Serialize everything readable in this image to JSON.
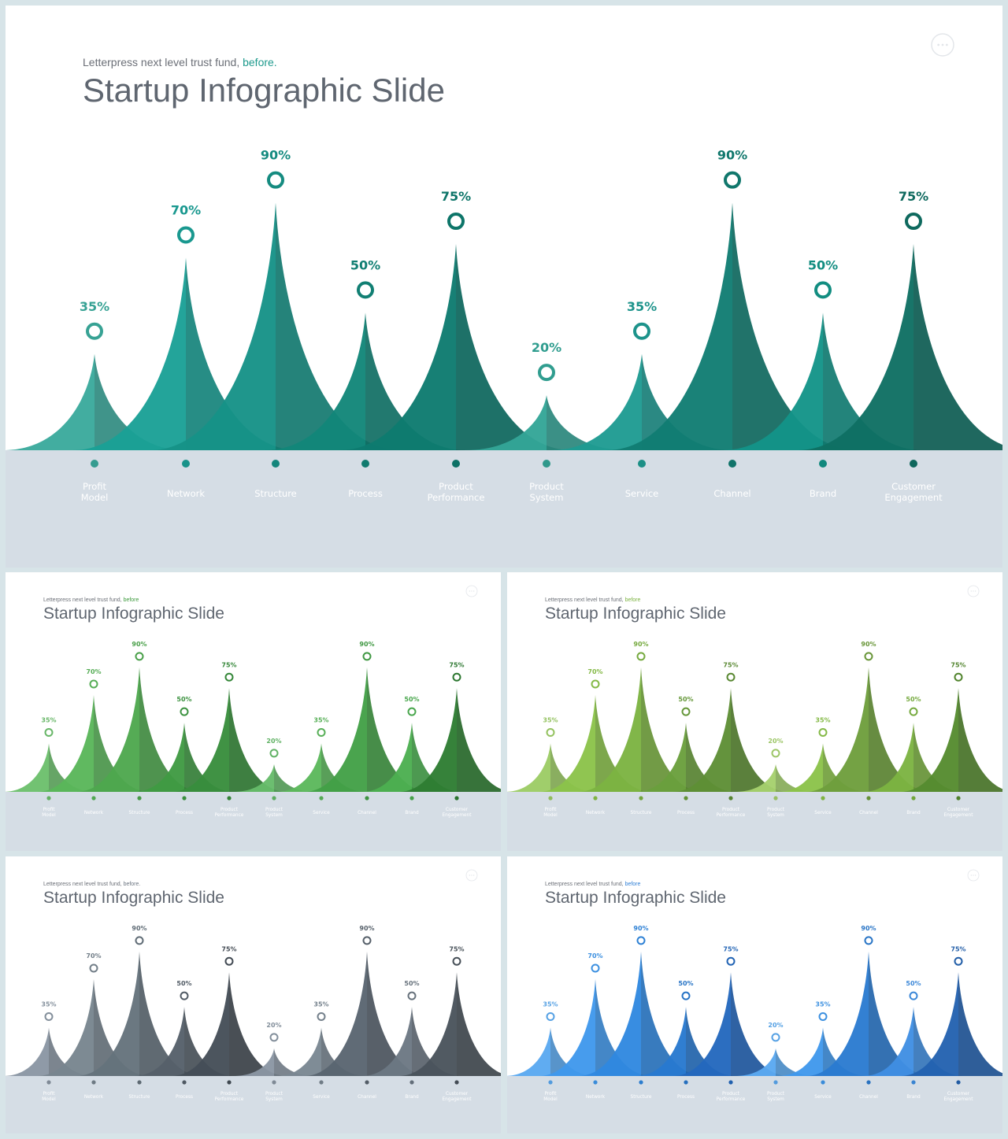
{
  "slides": [
    {
      "id": "main",
      "subtitle": "Letterpress next level trust fund,",
      "subtitle_accent": "before.",
      "title": "Startup Infographic Slide",
      "more_icon": "more-horizontal-icon",
      "colors": [
        "#3aaa9c",
        "#1aa096",
        "#169287",
        "#128679",
        "#0e7b6f",
        "#33a597",
        "#1e9b92",
        "#117d72",
        "#139488",
        "#0f6f63"
      ],
      "label_color": "#137a6f",
      "accent_color": "#1e9a8d",
      "band_color": "#d5dde5"
    },
    {
      "id": "green",
      "subtitle": "Letterpress next level trust fund,",
      "subtitle_accent": "before",
      "title": "Startup Infographic Slide",
      "more_icon": "more-horizontal-icon",
      "colors": [
        "#6cc06c",
        "#5ab65a",
        "#4ea84e",
        "#3f9a43",
        "#388e3c",
        "#66bb6a",
        "#5cb85c",
        "#43a047",
        "#4caf50",
        "#2e7d32"
      ],
      "label_color": "#3f8a3f",
      "accent_color": "#3d9a3d",
      "band_color": "#d5dde5"
    },
    {
      "id": "lime",
      "subtitle": "Letterpress next level trust fund,",
      "subtitle_accent": "before",
      "title": "Startup Infographic Slide",
      "more_icon": "more-horizontal-icon",
      "colors": [
        "#9ccc65",
        "#8bc34a",
        "#7cb342",
        "#6a9f3c",
        "#5e8f35",
        "#a5d06d",
        "#8bc34a",
        "#6e9e3c",
        "#7cb342",
        "#558b2f"
      ],
      "label_color": "#6a9a3a",
      "accent_color": "#7cb342",
      "band_color": "#d5dde5"
    },
    {
      "id": "slate",
      "subtitle": "Letterpress next level trust fund,",
      "subtitle_accent": "before.",
      "title": "Startup Infographic Slide",
      "more_icon": "more-horizontal-icon",
      "colors": [
        "#8a96a3",
        "#78858f",
        "#65727c",
        "#55606a",
        "#454e57",
        "#8a96a3",
        "#7a8792",
        "#5a6570",
        "#6c7883",
        "#4a535c"
      ],
      "label_color": "#4a535c",
      "accent_color": "#6b7480",
      "band_color": "#d5dde5"
    },
    {
      "id": "blue",
      "subtitle": "Letterpress next level trust fund,",
      "subtitle_accent": "before",
      "title": "Startup Infographic Slide",
      "more_icon": "more-horizontal-icon",
      "colors": [
        "#5aa9f0",
        "#3f98ec",
        "#3088e0",
        "#2879cf",
        "#2368bd",
        "#5aa9f0",
        "#3f98ec",
        "#2b7bd0",
        "#3f8fe3",
        "#2362b0"
      ],
      "label_color": "#2f6fb8",
      "accent_color": "#2f7fd6",
      "band_color": "#d5dde5"
    }
  ],
  "chart_data": {
    "type": "area",
    "categories": [
      "Profit Model",
      "Network",
      "Structure",
      "Process",
      "Product Performance",
      "Product System",
      "Service",
      "Channel",
      "Brand",
      "Customer Engagement"
    ],
    "category_lines": [
      [
        "Profit",
        "Model"
      ],
      [
        "Network"
      ],
      [
        "Structure"
      ],
      [
        "Process"
      ],
      [
        "Product",
        "Performance"
      ],
      [
        "Product",
        "System"
      ],
      [
        "Service"
      ],
      [
        "Channel"
      ],
      [
        "Brand"
      ],
      [
        "Customer",
        "Engagement"
      ]
    ],
    "values": [
      35,
      70,
      90,
      50,
      75,
      20,
      35,
      90,
      50,
      75
    ],
    "value_labels": [
      "35%",
      "70%",
      "90%",
      "50%",
      "75%",
      "20%",
      "35%",
      "90%",
      "50%",
      "75%"
    ],
    "ylim": [
      0,
      100
    ],
    "grid": false,
    "legend": "none"
  }
}
